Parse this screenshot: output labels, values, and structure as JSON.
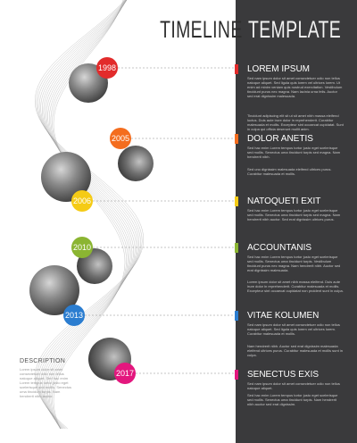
{
  "title": {
    "left": "TIMELINE",
    "right": "TEMPLATE"
  },
  "events": [
    {
      "year": "1998",
      "color": "#e22b2b",
      "heading": "LOREM IPSUM",
      "para1": "Sed nam ipsum dolor sit amet consectetuer odio non tellus natoque aliquet. Sed ligula quis lorem vel ultrices lorem. Ut enim ad minim veniam quis nostrud exercitation. Vestibulum tincidunt purus nec magna. Nam lacinia urna felis. Auctor sed erat dignissim malesuada.",
      "para2": "Tincidunt adipiscing elit sit ut sit amet nibh massa eleifend luctus. Duis aute irure dolor in reprehenderit. Curabitur malesuada et mollis. Excepteur sint occaecat cupidatat. Sunt in culpa qui officia deserunt mollit anim."
    },
    {
      "year": "2005",
      "color": "#f46d1e",
      "heading": "DOLOR ANETIS",
      "para1": "Sed hac enim Lorem tempus tortor justo eget scelerisque sed mollis. Senectus uma tincidunt turpis sed magna. Nam hendrerit nibh.",
      "para2": "Sed uno dignissim malesuada eleifend ultrices purus. Curabitur malesuada et mollis."
    },
    {
      "year": "2006",
      "color": "#f5cb16",
      "heading": "NATOQUETI EXIT",
      "para1": "Sed hac enim Lorem tempus tortor justo eget scelerisque sed mollis. Senectus uma tincidunt turpis sed magna. Nam hendrerit nibh auctor. Sed erat dignissim ultrices purus.",
      "para2": ""
    },
    {
      "year": "2010",
      "color": "#8bb532",
      "heading": "ACCOUNTANIS",
      "para1": "Sed hac enim Lorem tempus tortor justo eget scelerisque sed mollis. Senectus uma tincidunt turpis. Vestibulum tincidunt purus nec magna. Nam hendrerit nibh. Auctor sed erat dignissim malesuada.",
      "para2": "Lorem ipsum dolor sit amet nibh massa eleifend. Duis aute irure dolor in reprehenderit. Curabitur malesuada et mollis. Excepteur sint occaecat cupidatat non proident sunt in culpa."
    },
    {
      "year": "2013",
      "color": "#2b7dd0",
      "heading": "VITAE KOLUMEN",
      "para1": "Sed nam ipsum dolor sit amet consectetuer odio non tellus natoque aliquet. Sed ligula quis lorem vel ultrices lorem. Curabitur malesuada et mollis.",
      "para2": "Nam hendrerit nibh. Auctor sed erat dignissim malesuada eleifend ultrices purus. Curabitur malesuada et mollis sunt in culpa."
    },
    {
      "year": "2017",
      "color": "#e3177e",
      "heading": "SENECTUS EXIS",
      "para1": "Sed nam ipsum dolor sit amet consectetuer odio non tellus natoque aliquet.",
      "para2": "Sed hac enim Lorem tempus tortor justo eget scelerisque sed mollis. Senectus uma tincidunt turpis. Nam hendrerit nibh auctor sed erat dignissim."
    }
  ],
  "description": {
    "title": "DESCRIPTION",
    "text": "Lorem ipsum dolor sit amet consectetuer odio non tellus natoque aliquet. Sed hac enim Lorem tempus tortor justo eget scelerisque sed mollis. Senectus uma tincidunt turpis. Nam hendrerit nibh auctor."
  }
}
